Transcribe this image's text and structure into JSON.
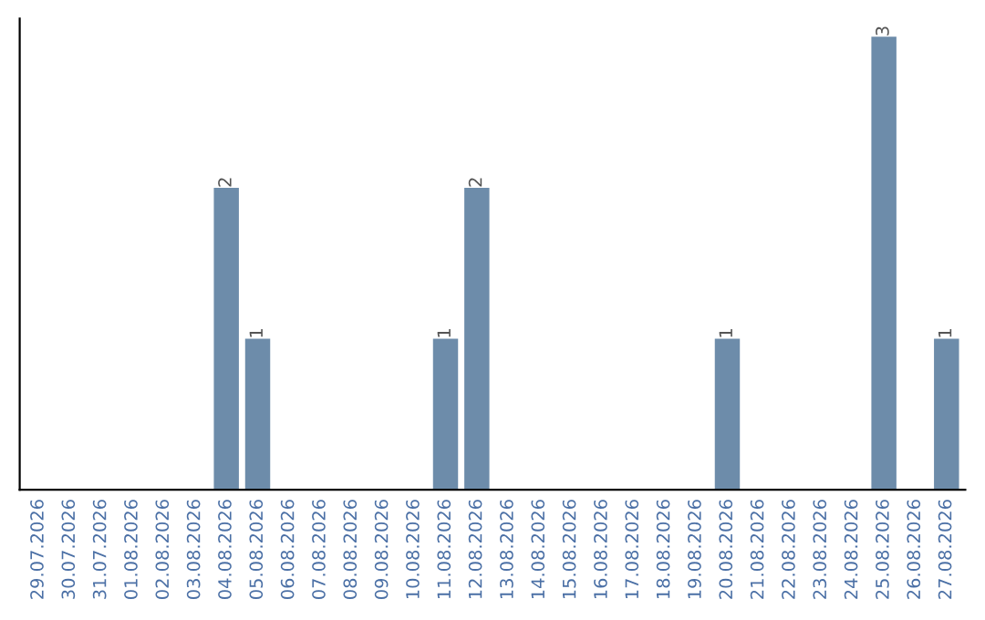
{
  "chart_data": {
    "type": "bar",
    "categories": [
      "29.07.2026",
      "30.07.2026",
      "31.07.2026",
      "01.08.2026",
      "02.08.2026",
      "03.08.2026",
      "04.08.2026",
      "05.08.2026",
      "06.08.2026",
      "07.08.2026",
      "08.08.2026",
      "09.08.2026",
      "10.08.2026",
      "11.08.2026",
      "12.08.2026",
      "13.08.2026",
      "14.08.2026",
      "15.08.2026",
      "16.08.2026",
      "17.08.2026",
      "18.08.2026",
      "19.08.2026",
      "20.08.2026",
      "21.08.2026",
      "22.08.2026",
      "23.08.2026",
      "24.08.2026",
      "25.08.2026",
      "26.08.2026",
      "27.08.2026"
    ],
    "values": [
      0,
      0,
      0,
      0,
      0,
      0,
      2,
      1,
      0,
      0,
      0,
      0,
      0,
      1,
      2,
      0,
      0,
      0,
      0,
      0,
      0,
      0,
      1,
      0,
      0,
      0,
      0,
      3,
      0,
      1
    ],
    "value_labels": [
      null,
      null,
      null,
      null,
      null,
      null,
      "2",
      "1",
      null,
      null,
      null,
      null,
      null,
      "1",
      "2",
      null,
      null,
      null,
      null,
      null,
      null,
      null,
      "1",
      null,
      null,
      null,
      null,
      "3",
      null,
      "1"
    ],
    "color": "#6d8caa",
    "tick_labels": "x",
    "grid": false,
    "legend": false
  }
}
